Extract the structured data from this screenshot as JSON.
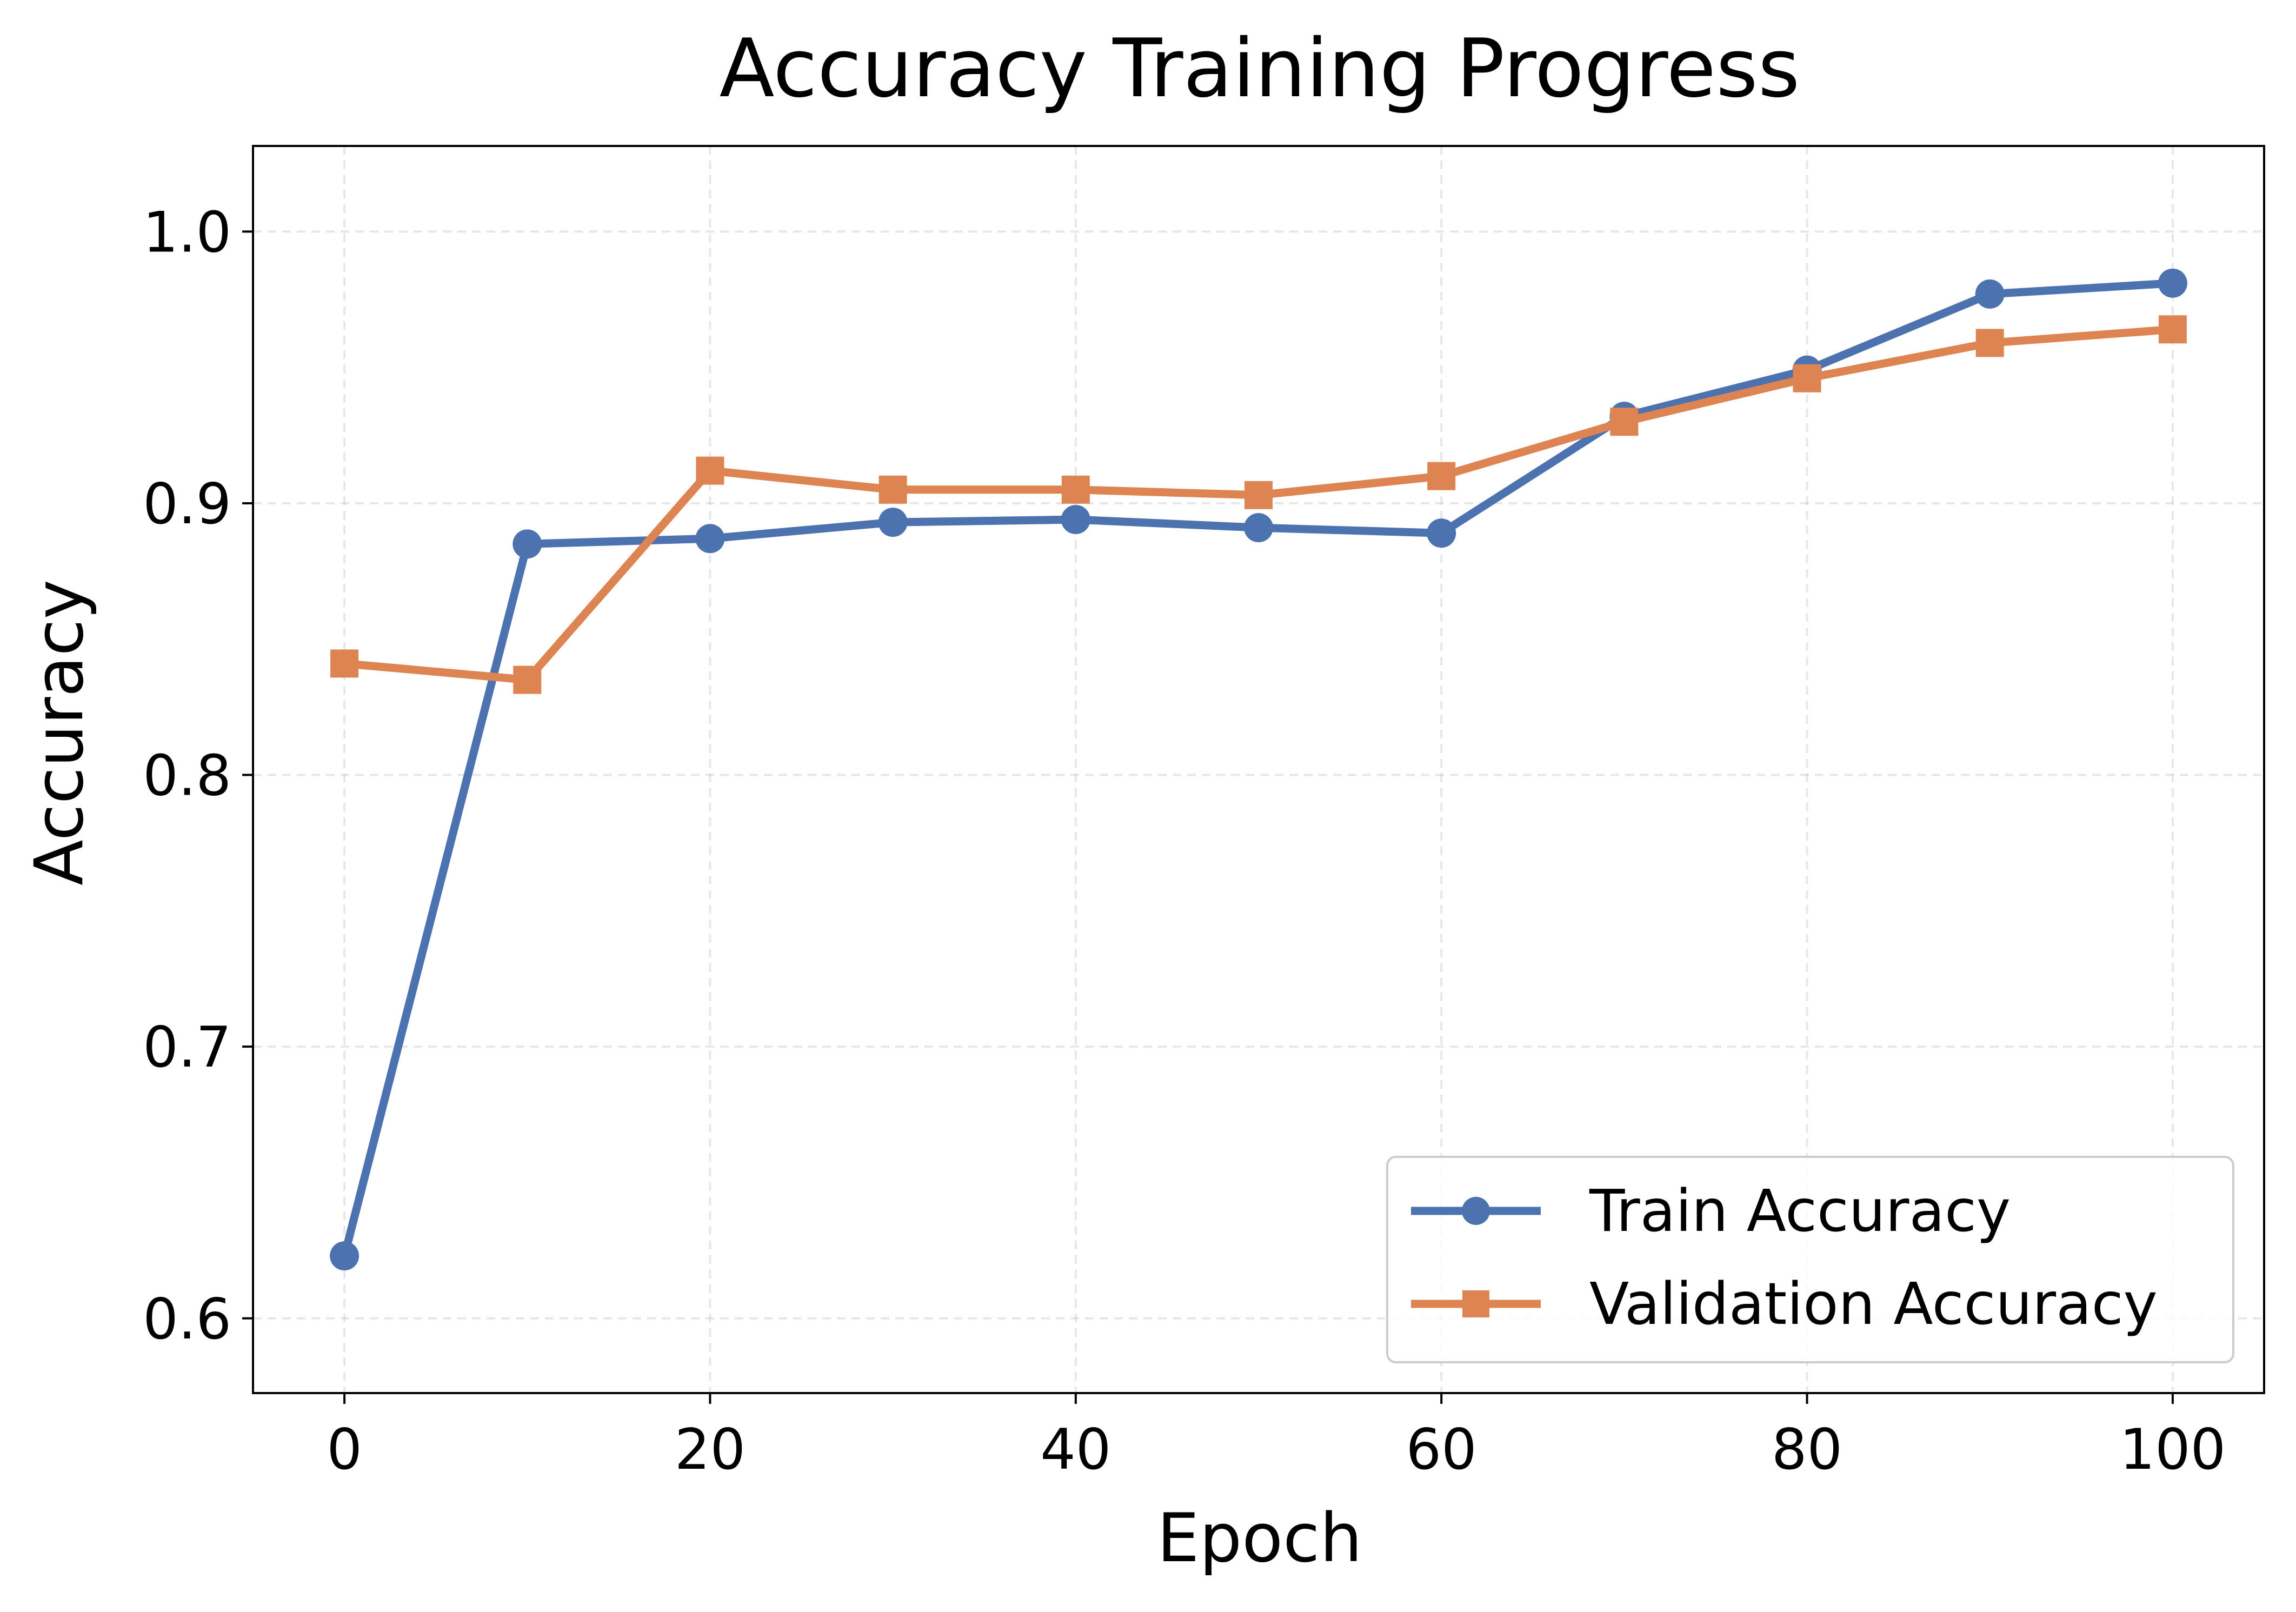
{
  "chart_data": {
    "type": "line",
    "title": "Accuracy Training Progress",
    "xlabel": "Epoch",
    "ylabel": "Accuracy",
    "xlim": [
      -5,
      105
    ],
    "ylim": [
      0.5725,
      1.0315
    ],
    "x_ticks": [
      0,
      20,
      40,
      60,
      80,
      100
    ],
    "x_tick_labels": [
      "0",
      "20",
      "40",
      "60",
      "80",
      "100"
    ],
    "y_ticks": [
      0.6,
      0.7,
      0.8,
      0.9,
      1.0
    ],
    "y_tick_labels": [
      "0.6",
      "0.7",
      "0.8",
      "0.9",
      "1.0"
    ],
    "grid": true,
    "legend_position": "lower-right",
    "x": [
      0,
      10,
      20,
      30,
      40,
      50,
      60,
      70,
      80,
      90,
      100
    ],
    "series": [
      {
        "name": "Train Accuracy",
        "color": "#4c72b0",
        "marker": "circle",
        "values": [
          0.623,
          0.885,
          0.887,
          0.893,
          0.894,
          0.891,
          0.889,
          0.932,
          0.949,
          0.977,
          0.981
        ]
      },
      {
        "name": "Validation Accuracy",
        "color": "#dd8452",
        "marker": "square",
        "values": [
          0.841,
          0.835,
          0.912,
          0.905,
          0.905,
          0.903,
          0.91,
          0.93,
          0.946,
          0.959,
          0.964
        ]
      }
    ]
  }
}
